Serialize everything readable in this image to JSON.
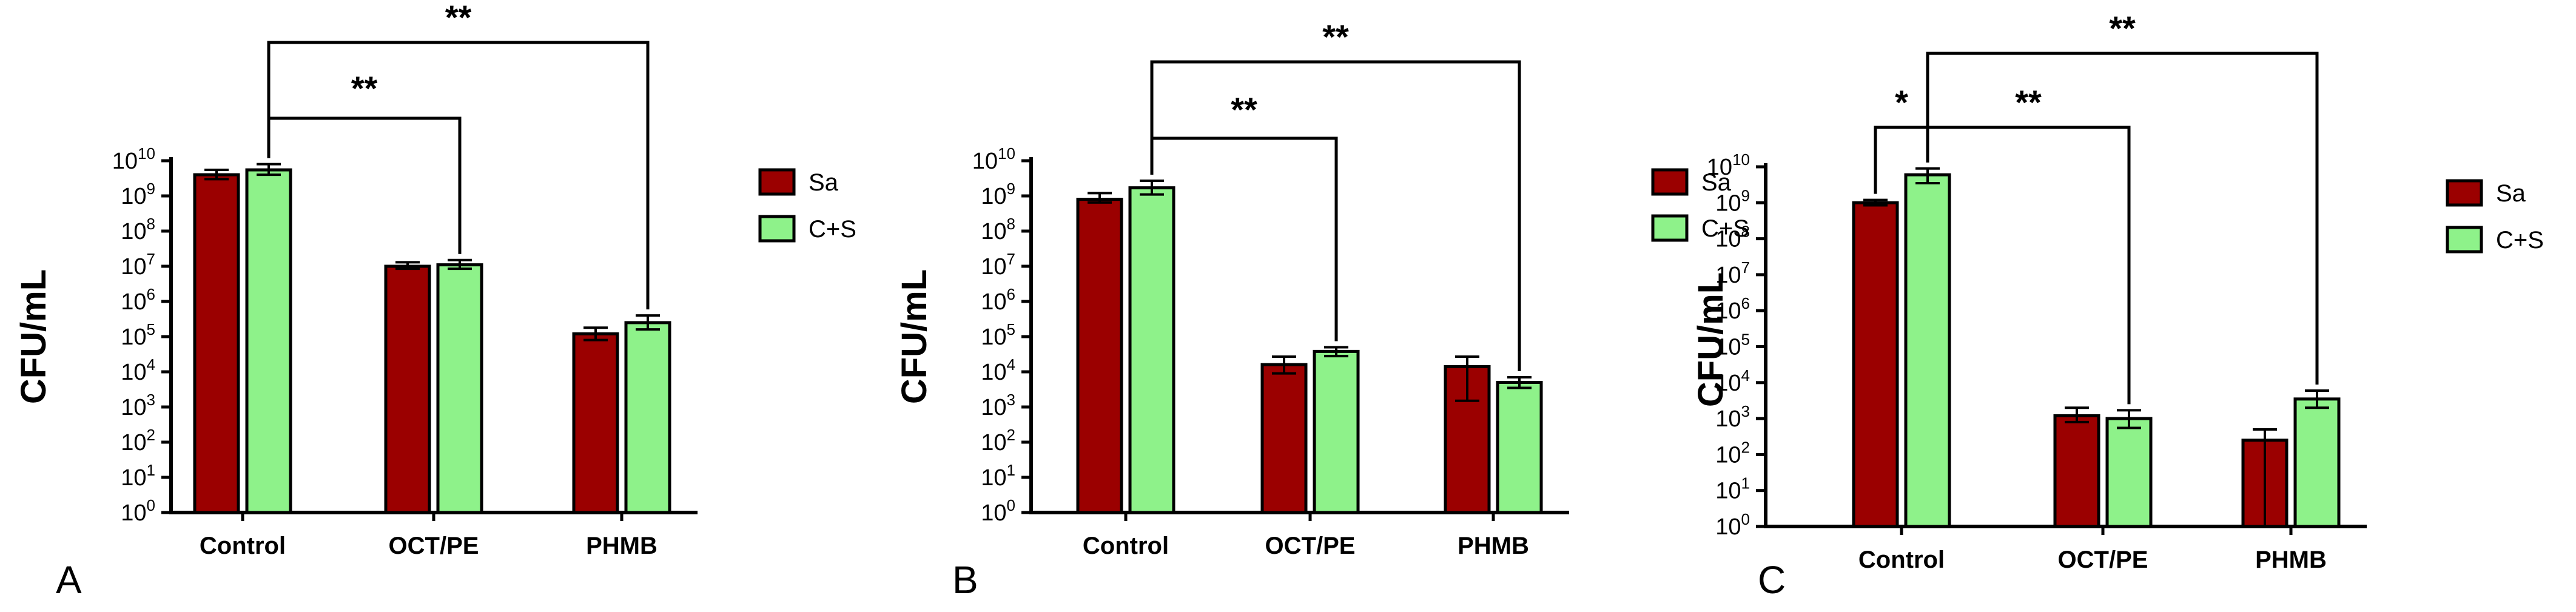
{
  "chart_data": [
    {
      "type": "bar",
      "panel_label": "A",
      "categories": [
        "Control",
        "OCT/PE",
        "PHMB"
      ],
      "ylabel": "CFU/mL",
      "yscale": "log",
      "ylim": [
        1,
        10000000000
      ],
      "yticks": [
        {
          "base": "10",
          "exp": "0"
        },
        {
          "base": "10",
          "exp": "1"
        },
        {
          "base": "10",
          "exp": "2"
        },
        {
          "base": "10",
          "exp": "3"
        },
        {
          "base": "10",
          "exp": "4"
        },
        {
          "base": "10",
          "exp": "5"
        },
        {
          "base": "10",
          "exp": "6"
        },
        {
          "base": "10",
          "exp": "7"
        },
        {
          "base": "10",
          "exp": "8"
        },
        {
          "base": "10",
          "exp": "9"
        },
        {
          "base": "10",
          "exp": "10"
        }
      ],
      "series": [
        {
          "name": "Sa",
          "color": "#9b0000",
          "values": [
            4000000000,
            10000000,
            120000
          ],
          "err_high": [
            5500000000,
            13000000,
            180000
          ],
          "err_low": [
            3000000000,
            8500000,
            80000
          ]
        },
        {
          "name": "C+S",
          "color": "#8ef28a",
          "values": [
            5500000000,
            11000000,
            250000
          ],
          "err_high": [
            8000000000,
            15000000,
            400000
          ],
          "err_low": [
            4000000000,
            8500000,
            160000
          ]
        }
      ],
      "significance": [
        {
          "from": "Control",
          "to": "OCT/PE",
          "label": "**"
        },
        {
          "from": "Control",
          "to": "PHMB",
          "label": "**"
        }
      ],
      "legend_position": "right"
    },
    {
      "type": "bar",
      "panel_label": "B",
      "categories": [
        "Control",
        "OCT/PE",
        "PHMB"
      ],
      "ylabel": "CFU/mL",
      "yscale": "log",
      "ylim": [
        1,
        10000000000
      ],
      "yticks": [
        {
          "base": "10",
          "exp": "0"
        },
        {
          "base": "10",
          "exp": "1"
        },
        {
          "base": "10",
          "exp": "2"
        },
        {
          "base": "10",
          "exp": "3"
        },
        {
          "base": "10",
          "exp": "4"
        },
        {
          "base": "10",
          "exp": "5"
        },
        {
          "base": "10",
          "exp": "6"
        },
        {
          "base": "10",
          "exp": "7"
        },
        {
          "base": "10",
          "exp": "8"
        },
        {
          "base": "10",
          "exp": "9"
        },
        {
          "base": "10",
          "exp": "10"
        }
      ],
      "series": [
        {
          "name": "Sa",
          "color": "#9b0000",
          "values": [
            800000000,
            16000,
            14000
          ],
          "err_high": [
            1200000000,
            27000,
            27000
          ],
          "err_low": [
            650000000,
            9000,
            1500
          ]
        },
        {
          "name": "C+S",
          "color": "#8ef28a",
          "values": [
            1700000000,
            38000,
            5000
          ],
          "err_high": [
            2700000000,
            50000,
            7000
          ],
          "err_low": [
            1100000000,
            28000,
            3500
          ]
        }
      ],
      "significance": [
        {
          "from": "Control",
          "to": "OCT/PE",
          "label": "**"
        },
        {
          "from": "Control",
          "to": "PHMB",
          "label": "**"
        }
      ],
      "legend_position": "right"
    },
    {
      "type": "bar",
      "panel_label": "C",
      "categories": [
        "Control",
        "OCT/PE",
        "PHMB"
      ],
      "ylabel": "CFU/mL",
      "yscale": "log",
      "ylim": [
        1,
        10000000000
      ],
      "yticks": [
        {
          "base": "10",
          "exp": "0"
        },
        {
          "base": "10",
          "exp": "1"
        },
        {
          "base": "10",
          "exp": "2"
        },
        {
          "base": "10",
          "exp": "3"
        },
        {
          "base": "10",
          "exp": "4"
        },
        {
          "base": "10",
          "exp": "5"
        },
        {
          "base": "10",
          "exp": "6"
        },
        {
          "base": "10",
          "exp": "7"
        },
        {
          "base": "10",
          "exp": "8"
        },
        {
          "base": "10",
          "exp": "9"
        },
        {
          "base": "10",
          "exp": "10"
        }
      ],
      "series": [
        {
          "name": "Sa",
          "color": "#9b0000",
          "values": [
            1000000000,
            1200,
            250
          ],
          "err_high": [
            1200000000,
            2000,
            500
          ],
          "err_low": [
            850000000,
            800,
            1
          ]
        },
        {
          "name": "C+S",
          "color": "#8ef28a",
          "values": [
            6000000000,
            1000,
            3500
          ],
          "err_high": [
            9000000000,
            1700,
            6000
          ],
          "err_low": [
            3500000000,
            550,
            2000
          ]
        }
      ],
      "significance": [
        {
          "from_series": "Sa",
          "to_series": "C+S",
          "category": "Control",
          "label": "*"
        },
        {
          "from": "Control",
          "to": "OCT/PE",
          "label": "**"
        },
        {
          "from": "Control",
          "to": "PHMB",
          "label": "**"
        }
      ],
      "legend_position": "right"
    }
  ]
}
